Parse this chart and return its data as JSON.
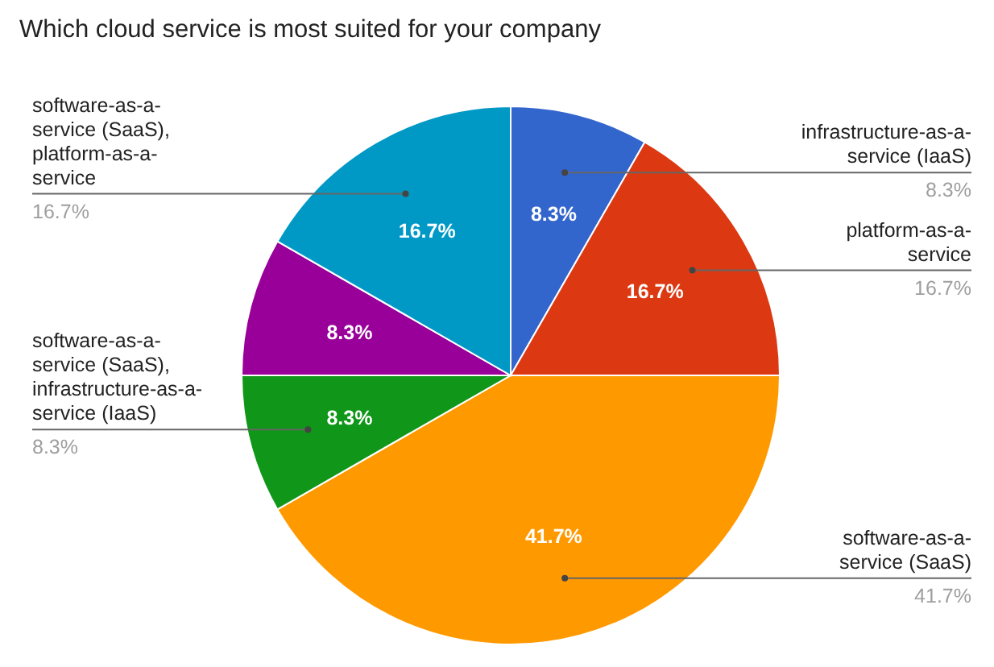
{
  "chart_data": {
    "type": "pie",
    "title": "Which cloud service is most suited for your company",
    "categories": [
      "infrastructure-as-a-service (IaaS)",
      "platform-as-a-service",
      "software-as-a-service (SaaS)",
      "software-as-a-service (SaaS), infrastructure-as-a-service (IaaS)",
      null,
      "software-as-a-service (SaaS), platform-as-a-service"
    ],
    "values": [
      8.3,
      16.7,
      41.7,
      8.3,
      8.3,
      16.7
    ],
    "value_labels": [
      "8.3%",
      "16.7%",
      "41.7%",
      "8.3%",
      "8.3%",
      "16.7%"
    ],
    "colors": [
      "#3366cc",
      "#dc3912",
      "#ff9900",
      "#109618",
      "#990099",
      "#0099c6"
    ]
  }
}
